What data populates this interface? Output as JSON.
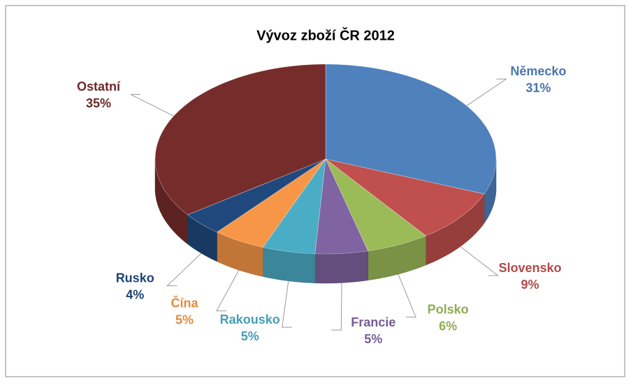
{
  "chart_data": {
    "type": "pie",
    "title": "Vývoz zboží ČR 2012",
    "categories": [
      "Německo",
      "Slovensko",
      "Polsko",
      "Francie",
      "Rakousko",
      "Čína",
      "Rusko",
      "Ostatní"
    ],
    "values": [
      31,
      9,
      6,
      5,
      5,
      5,
      4,
      35
    ],
    "value_labels": [
      "31%",
      "9%",
      "6%",
      "5%",
      "5%",
      "5%",
      "4%",
      "35%"
    ],
    "colors": [
      "#4f81bd",
      "#c0504d",
      "#9bbb59",
      "#8064a2",
      "#4bacc6",
      "#f79646",
      "#1f497d",
      "#772c2c"
    ]
  }
}
